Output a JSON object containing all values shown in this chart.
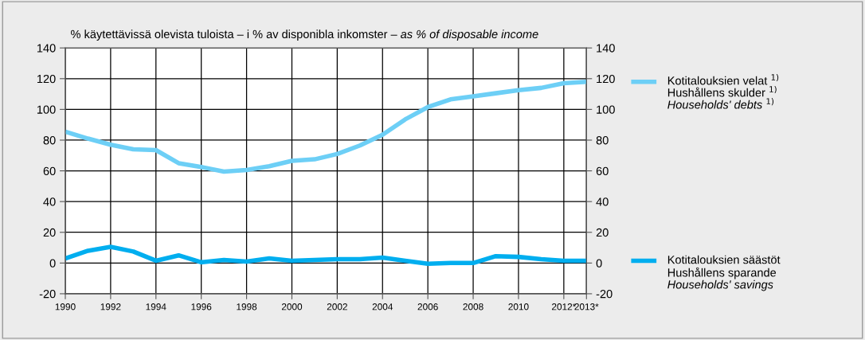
{
  "chart_data": {
    "type": "line",
    "title": "% käytettävissä olevista tuloista – i % av disponibla inkomster – as % of disposable income",
    "x": [
      1990,
      1991,
      1992,
      1993,
      1994,
      1995,
      1996,
      1997,
      1998,
      1999,
      2000,
      2001,
      2002,
      2003,
      2004,
      2005,
      2006,
      2007,
      2008,
      2009,
      2010,
      2011,
      2012,
      2013
    ],
    "series": [
      {
        "name": "Kotitalouksien velat $^{1)}$\nHushållens skulder $^{1)}$\nHouseholds' debts $^{1)}$",
        "color": "#6dcff6",
        "values": [
          85.5,
          81,
          77,
          74,
          73.5,
          65,
          62.5,
          59.5,
          60.5,
          63,
          66.5,
          67.5,
          71,
          76.5,
          83.5,
          93.5,
          101.5,
          106.5,
          108.5,
          110.5,
          112.5,
          114,
          117,
          118
        ]
      },
      {
        "name": "Kotitalouksien säästöt\nHushållens sparande\nHouseholds' savings",
        "color": "#00aeef",
        "values": [
          3,
          8,
          10.5,
          7.5,
          1.5,
          5,
          0.5,
          2,
          1,
          3,
          1.5,
          2,
          2.5,
          2.5,
          3.5,
          1.5,
          -0.5,
          0,
          0,
          4.5,
          4,
          2.5,
          1.5,
          1.5
        ]
      }
    ],
    "xlim": [
      1990,
      2013
    ],
    "xticks": [
      1990,
      1992,
      1994,
      1996,
      1998,
      2000,
      2002,
      2004,
      2006,
      2008,
      2010,
      {
        "value": 2012,
        "label": "2012*"
      },
      {
        "value": 2013,
        "label": "2013*"
      }
    ],
    "ylim": [
      -20,
      140
    ],
    "yticks": [
      -20,
      0,
      20,
      40,
      60,
      80,
      100,
      120,
      140
    ],
    "y2lim": [
      -20,
      140
    ],
    "y2ticks": [
      -20,
      0,
      20,
      40,
      60,
      80,
      100,
      120,
      140
    ],
    "grid": true,
    "legend": "right",
    "marker": "none",
    "line_style": "solid"
  }
}
